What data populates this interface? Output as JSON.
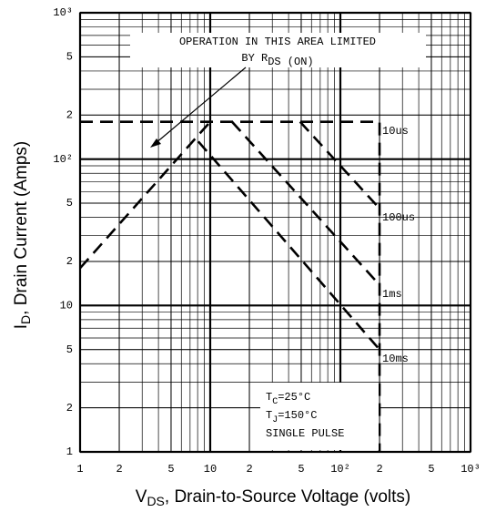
{
  "chart_data": {
    "type": "line",
    "xlabel": {
      "main": "V",
      "sub": "DS",
      "rest": ", Drain-to-Source Voltage (volts)"
    },
    "ylabel": {
      "main": "I",
      "sub": "D",
      "rest": ", Drain Current (Amps)"
    },
    "xlog": true,
    "ylog": true,
    "grid": true,
    "minor_grid": true,
    "color": "#000000",
    "xlim": [
      1,
      1000
    ],
    "ylim": [
      1,
      1000
    ],
    "xticks": [
      1,
      2,
      5,
      10,
      {
        "value": 20,
        "label": "2"
      },
      {
        "value": 50,
        "label": "5"
      },
      {
        "value": 100,
        "label": "10²"
      },
      {
        "value": 200,
        "label": "2"
      },
      {
        "value": 500,
        "label": "5"
      },
      {
        "value": 1000,
        "label": "10³"
      }
    ],
    "yticks": [
      1,
      2,
      5,
      10,
      {
        "value": 20,
        "label": "2"
      },
      {
        "value": 50,
        "label": "5"
      },
      {
        "value": 100,
        "label": "10²"
      },
      {
        "value": 200,
        "label": "2"
      },
      {
        "value": 500,
        "label": "5"
      },
      {
        "value": 1000,
        "label": "10³"
      }
    ],
    "series": [
      {
        "x": [
          1,
          10
        ],
        "values": [
          18,
          180
        ]
      },
      {
        "name": "10us",
        "x": [
          1,
          200,
          200
        ],
        "values": [
          180,
          180,
          1
        ]
      },
      {
        "name": "100us",
        "x": [
          49,
          200
        ],
        "values": [
          180,
          46
        ]
      },
      {
        "name": "1ms",
        "x": [
          14.7,
          200
        ],
        "values": [
          180,
          13.8
        ]
      },
      {
        "name": "10ms",
        "x": [
          8.1,
          200
        ],
        "values": [
          132,
          5
        ]
      }
    ],
    "annotation": {
      "line1": "OPERATION IN THIS AREA LIMITED",
      "line2": {
        "main": "BY R",
        "sub": "DS (ON)"
      }
    },
    "conditions": [
      {
        "main": "T",
        "sub": "C",
        "rest": "=25°C"
      },
      {
        "main": "T",
        "sub": "J",
        "rest": "=150°C"
      },
      {
        "main": "SINGLE PULSE"
      }
    ]
  }
}
